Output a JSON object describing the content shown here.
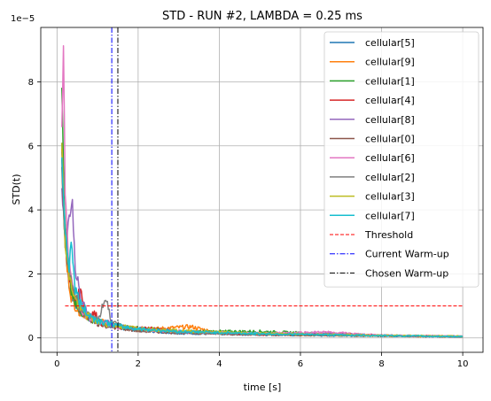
{
  "chart_data": {
    "type": "line",
    "title": "STD - RUN #2, LAMBDA = 0.25 ms",
    "xlabel": "time [s]",
    "ylabel": "STD(t)",
    "y_offset_text": "1e−5",
    "xlim": [
      -0.4,
      10.5
    ],
    "ylim": [
      -0.45,
      9.7
    ],
    "y_scale_note": "values in units of 1e-5",
    "xticks": [
      0,
      2,
      4,
      6,
      8,
      10
    ],
    "yticks": [
      0,
      2,
      4,
      6,
      8
    ],
    "grid": true,
    "legend_position": "top-right",
    "series": [
      {
        "name": "cellular[5]",
        "color": "#1f77b4",
        "points": [
          [
            0.12,
            6.1
          ],
          [
            0.18,
            3.6
          ],
          [
            0.24,
            2.4
          ],
          [
            0.3,
            1.6
          ],
          [
            0.45,
            1.1
          ],
          [
            0.6,
            0.8
          ],
          [
            0.8,
            0.6
          ],
          [
            1.0,
            0.5
          ],
          [
            1.3,
            0.4
          ],
          [
            1.6,
            0.3
          ],
          [
            2,
            0.25
          ],
          [
            3,
            0.15
          ],
          [
            4,
            0.12
          ],
          [
            6,
            0.08
          ],
          [
            8,
            0.06
          ],
          [
            10,
            0.04
          ]
        ]
      },
      {
        "name": "cellular[9]",
        "color": "#ff7f0e",
        "points": [
          [
            0.12,
            6.0
          ],
          [
            0.18,
            3.5
          ],
          [
            0.25,
            2.1
          ],
          [
            0.35,
            1.3
          ],
          [
            0.5,
            0.9
          ],
          [
            0.7,
            0.7
          ],
          [
            0.9,
            0.6
          ],
          [
            1.1,
            0.5
          ],
          [
            1.4,
            0.4
          ],
          [
            1.8,
            0.3
          ],
          [
            2.4,
            0.28
          ],
          [
            3.3,
            0.35
          ],
          [
            4,
            0.15
          ],
          [
            6,
            0.1
          ],
          [
            8,
            0.06
          ],
          [
            10,
            0.04
          ]
        ]
      },
      {
        "name": "cellular[1]",
        "color": "#2ca02c",
        "points": [
          [
            0.12,
            7.8
          ],
          [
            0.18,
            4.1
          ],
          [
            0.26,
            2.6
          ],
          [
            0.35,
            1.5
          ],
          [
            0.5,
            1.0
          ],
          [
            0.7,
            0.7
          ],
          [
            0.9,
            0.55
          ],
          [
            1.2,
            0.45
          ],
          [
            1.5,
            0.35
          ],
          [
            2,
            0.3
          ],
          [
            3,
            0.2
          ],
          [
            5,
            0.2
          ],
          [
            6.2,
            0.15
          ],
          [
            8,
            0.07
          ],
          [
            10,
            0.05
          ]
        ]
      },
      {
        "name": "cellular[4]",
        "color": "#d62728",
        "points": [
          [
            0.12,
            5.5
          ],
          [
            0.2,
            3.2
          ],
          [
            0.3,
            2.0
          ],
          [
            0.45,
            1.2
          ],
          [
            0.6,
            1.45
          ],
          [
            0.75,
            0.6
          ],
          [
            0.9,
            0.8
          ],
          [
            1.1,
            0.45
          ],
          [
            1.4,
            0.35
          ],
          [
            1.8,
            0.3
          ],
          [
            2.3,
            0.3
          ],
          [
            3,
            0.2
          ],
          [
            5,
            0.1
          ],
          [
            7.2,
            0.12
          ],
          [
            8,
            0.08
          ],
          [
            10,
            0.05
          ]
        ]
      },
      {
        "name": "cellular[8]",
        "color": "#9467bd",
        "points": [
          [
            0.12,
            4.8
          ],
          [
            0.2,
            2.9
          ],
          [
            0.3,
            3.8
          ],
          [
            0.38,
            4.2
          ],
          [
            0.45,
            2.2
          ],
          [
            0.6,
            1.1
          ],
          [
            0.8,
            0.7
          ],
          [
            1.0,
            0.55
          ],
          [
            1.3,
            0.45
          ],
          [
            1.6,
            0.35
          ],
          [
            2,
            0.25
          ],
          [
            3,
            0.18
          ],
          [
            5,
            0.12
          ],
          [
            6.6,
            0.15
          ],
          [
            8,
            0.07
          ],
          [
            10,
            0.04
          ]
        ]
      },
      {
        "name": "cellular[0]",
        "color": "#8c564b",
        "points": [
          [
            0.12,
            5.2
          ],
          [
            0.2,
            3.0
          ],
          [
            0.3,
            1.9
          ],
          [
            0.45,
            1.2
          ],
          [
            0.6,
            0.85
          ],
          [
            0.8,
            0.6
          ],
          [
            1.0,
            0.45
          ],
          [
            1.3,
            0.35
          ],
          [
            1.6,
            0.3
          ],
          [
            2,
            0.22
          ],
          [
            3,
            0.16
          ],
          [
            5,
            0.1
          ],
          [
            8,
            0.06
          ],
          [
            10,
            0.04
          ]
        ]
      },
      {
        "name": "cellular[6]",
        "color": "#e377c2",
        "points": [
          [
            0.12,
            6.5
          ],
          [
            0.16,
            9.2
          ],
          [
            0.2,
            4.5
          ],
          [
            0.28,
            2.6
          ],
          [
            0.4,
            1.5
          ],
          [
            0.55,
            1.0
          ],
          [
            0.7,
            0.7
          ],
          [
            0.9,
            0.55
          ],
          [
            1.2,
            0.45
          ],
          [
            1.5,
            0.35
          ],
          [
            2,
            0.28
          ],
          [
            3,
            0.2
          ],
          [
            5,
            0.14
          ],
          [
            6.6,
            0.18
          ],
          [
            8,
            0.08
          ],
          [
            10,
            0.05
          ]
        ]
      },
      {
        "name": "cellular[2]",
        "color": "#7f7f7f",
        "points": [
          [
            0.12,
            5.8
          ],
          [
            0.2,
            3.4
          ],
          [
            0.3,
            2.1
          ],
          [
            0.45,
            1.3
          ],
          [
            0.6,
            0.9
          ],
          [
            0.8,
            0.65
          ],
          [
            1.0,
            0.55
          ],
          [
            1.2,
            1.25
          ],
          [
            1.35,
            0.5
          ],
          [
            1.6,
            0.35
          ],
          [
            2,
            0.28
          ],
          [
            3,
            0.18
          ],
          [
            5,
            0.12
          ],
          [
            8,
            0.07
          ],
          [
            10,
            0.04
          ]
        ]
      },
      {
        "name": "cellular[3]",
        "color": "#bcbd22",
        "points": [
          [
            0.12,
            6.0
          ],
          [
            0.2,
            3.0
          ],
          [
            0.3,
            1.9
          ],
          [
            0.45,
            1.2
          ],
          [
            0.6,
            0.85
          ],
          [
            0.8,
            0.65
          ],
          [
            1.0,
            0.5
          ],
          [
            1.3,
            0.4
          ],
          [
            1.6,
            0.35
          ],
          [
            2,
            0.3
          ],
          [
            3,
            0.22
          ],
          [
            5,
            0.14
          ],
          [
            8,
            0.08
          ],
          [
            10,
            0.05
          ]
        ]
      },
      {
        "name": "cellular[7]",
        "color": "#17becf",
        "points": [
          [
            0.12,
            5.6
          ],
          [
            0.2,
            3.3
          ],
          [
            0.3,
            2.2
          ],
          [
            0.35,
            3.1
          ],
          [
            0.45,
            1.5
          ],
          [
            0.6,
            1.0
          ],
          [
            0.8,
            0.7
          ],
          [
            1.0,
            0.55
          ],
          [
            1.3,
            0.45
          ],
          [
            1.6,
            0.35
          ],
          [
            2,
            0.28
          ],
          [
            3,
            0.2
          ],
          [
            5,
            0.13
          ],
          [
            8,
            0.07
          ],
          [
            10,
            0.04
          ]
        ]
      }
    ],
    "threshold": {
      "name": "Threshold",
      "color": "#ff0000",
      "y": 1.0,
      "x_start": 0.2,
      "x_end": 10
    },
    "vlines": [
      {
        "name": "Current Warm-up",
        "color": "#0000ff",
        "x": 1.35
      },
      {
        "name": "Chosen Warm-up",
        "color": "#000000",
        "x": 1.5
      }
    ]
  }
}
